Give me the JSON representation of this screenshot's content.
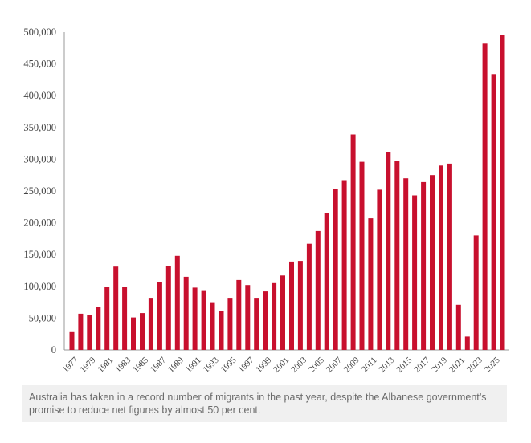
{
  "chart_data": {
    "type": "bar",
    "title": "",
    "xlabel": "",
    "ylabel": "",
    "ylim": [
      0,
      500000
    ],
    "yticks": [
      0,
      50000,
      100000,
      150000,
      200000,
      250000,
      300000,
      350000,
      400000,
      450000,
      500000
    ],
    "ytick_labels": [
      "0",
      "50,000",
      "100,000",
      "150,000",
      "200,000",
      "250,000",
      "300,000",
      "350,000",
      "400,000",
      "450,000",
      "500,000"
    ],
    "categories": [
      "1977",
      "1978",
      "1979",
      "1980",
      "1981",
      "1982",
      "1983",
      "1984",
      "1985",
      "1986",
      "1987",
      "1988",
      "1989",
      "1990",
      "1991",
      "1992",
      "1993",
      "1994",
      "1995",
      "1996",
      "1997",
      "1998",
      "1999",
      "2000",
      "2001",
      "2002",
      "2003",
      "2004",
      "2005",
      "2006",
      "2007",
      "2008",
      "2009",
      "2010",
      "2011",
      "2012",
      "2013",
      "2014",
      "2015",
      "2016",
      "2017",
      "2018",
      "2019",
      "2020",
      "2021",
      "2022",
      "2023",
      "2024",
      "2025",
      "2026"
    ],
    "xtick_labels": [
      "1977",
      "1979",
      "1981",
      "1983",
      "1985",
      "1987",
      "1989",
      "1991",
      "1993",
      "1995",
      "1997",
      "1999",
      "2001",
      "2003",
      "2005",
      "2007",
      "2009",
      "2011",
      "2013",
      "2015",
      "2017",
      "2019",
      "2021",
      "2023",
      "2025"
    ],
    "values": [
      28000,
      57000,
      55000,
      68000,
      99000,
      131000,
      99000,
      51000,
      58000,
      82000,
      106000,
      132000,
      148000,
      115000,
      98000,
      94000,
      75000,
      61000,
      82000,
      110000,
      102000,
      82000,
      92000,
      105000,
      117000,
      139000,
      140000,
      167000,
      187000,
      215000,
      253000,
      267000,
      339000,
      296000,
      207000,
      252000,
      311000,
      298000,
      270000,
      243000,
      264000,
      275000,
      290000,
      293000,
      71000,
      21000,
      180000,
      482000,
      434000,
      495000
    ],
    "bar_color": "#c8102e",
    "grid": false
  },
  "caption": "Australia has taken in a record number of migrants in the past year, despite the Albanese government’s promise to reduce net figures by almost 50 per cent."
}
